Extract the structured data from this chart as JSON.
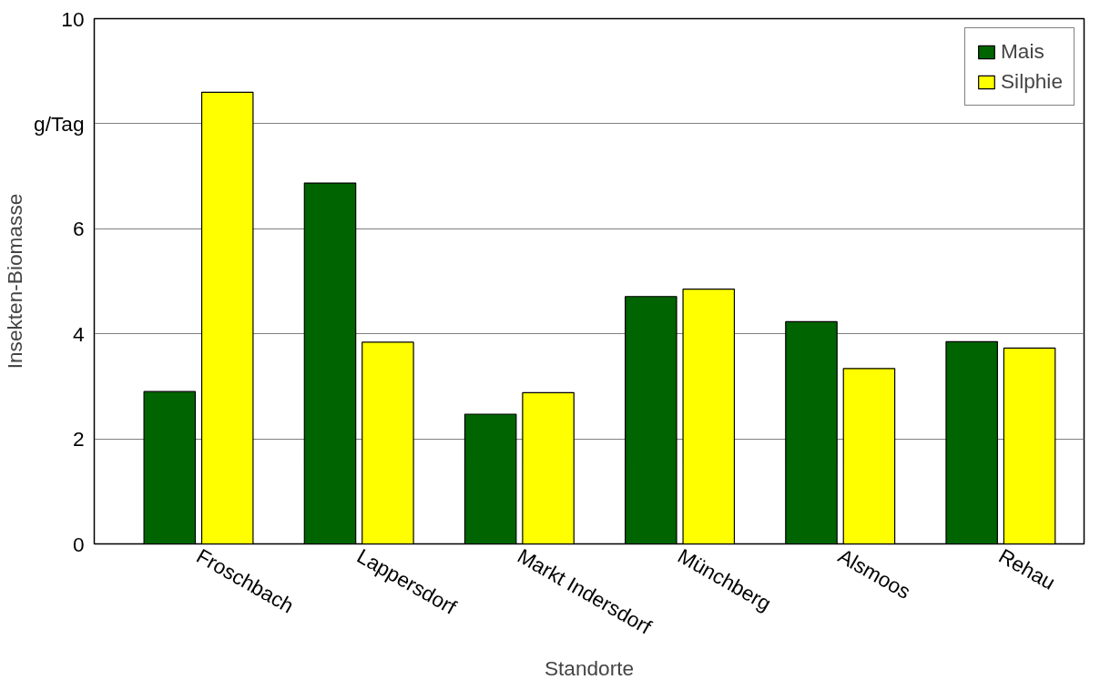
{
  "chart_data": {
    "type": "bar",
    "xlabel": "Standorte",
    "ylabel": "Insekten-Biomasse",
    "categories": [
      "Froschbach",
      "Lappersdorf",
      "Markt Indersdorf",
      "Münchberg",
      "Alsmoos",
      "Rehau"
    ],
    "series": [
      {
        "name": "Mais",
        "color": "#006400",
        "values": [
          2.9,
          6.87,
          2.47,
          4.71,
          4.23,
          3.85
        ]
      },
      {
        "name": "Silphie",
        "color": "#ffff00",
        "values": [
          8.6,
          3.84,
          2.88,
          4.85,
          3.34,
          3.73
        ]
      }
    ],
    "ylim": [
      0,
      10
    ],
    "yticks": [
      0,
      2,
      4,
      6,
      {
        "value": 8,
        "label": "g/Tag"
      },
      10
    ],
    "grid": "y",
    "legend": "top right"
  }
}
